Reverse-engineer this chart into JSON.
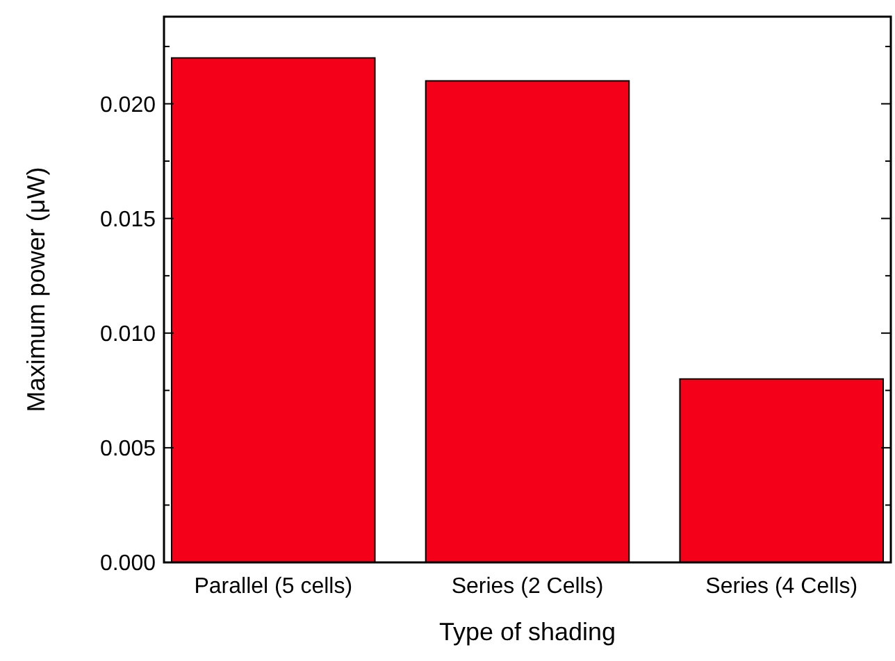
{
  "chart_data": {
    "type": "bar",
    "xlabel": "Type of shading",
    "ylabel": "Maximum power (μW)",
    "categories": [
      "Parallel (5 cells)",
      "Series (2 Cells)",
      "Series (4 Cells)"
    ],
    "values": [
      0.022,
      0.021,
      0.008
    ],
    "color": "#f40019",
    "ylim": [
      0,
      0.0238
    ],
    "yticks": [
      {
        "value": 0,
        "label": "0.000"
      },
      {
        "value": 0.0025,
        "label": null
      },
      {
        "value": 0.005,
        "label": "0.005"
      },
      {
        "value": 0.0075,
        "label": null
      },
      {
        "value": 0.01,
        "label": "0.010"
      },
      {
        "value": 0.0125,
        "label": null
      },
      {
        "value": 0.015,
        "label": "0.015"
      },
      {
        "value": 0.0175,
        "label": null
      },
      {
        "value": 0.02,
        "label": "0.020"
      },
      {
        "value": 0.0225,
        "label": null
      }
    ],
    "grid": false
  }
}
